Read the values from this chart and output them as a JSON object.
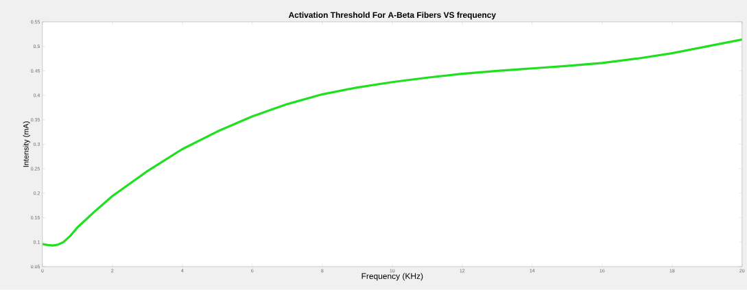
{
  "chart_data": {
    "type": "line",
    "title": "Activation Threshold For A-Beta Fibers VS frequency",
    "xlabel": "Frequency (KHz)",
    "ylabel": "Intensity (mA)",
    "x": [
      0,
      0.15,
      0.3,
      0.45,
      0.6,
      0.8,
      1,
      1.5,
      2,
      3,
      4,
      5,
      6,
      7,
      8,
      9,
      10,
      11,
      12,
      13,
      14,
      15,
      16,
      17,
      18,
      19,
      20
    ],
    "series": [
      {
        "color": "#1ee01e",
        "values": [
          0.096,
          0.094,
          0.093,
          0.095,
          0.1,
          0.113,
          0.13,
          0.163,
          0.194,
          0.245,
          0.29,
          0.326,
          0.357,
          0.382,
          0.402,
          0.416,
          0.427,
          0.436,
          0.444,
          0.45,
          0.455,
          0.46,
          0.466,
          0.475,
          0.486,
          0.5,
          0.514
        ]
      }
    ],
    "xlim": [
      0,
      20
    ],
    "ylim": [
      0.05,
      0.55
    ],
    "xticks": [
      0,
      2,
      4,
      6,
      8,
      10,
      12,
      14,
      16,
      18,
      20
    ],
    "yticks": [
      0.05,
      0.1,
      0.15,
      0.2,
      0.25,
      0.3,
      0.35,
      0.4,
      0.45,
      0.5,
      0.55
    ],
    "marker": "none",
    "line_style": "solid"
  }
}
